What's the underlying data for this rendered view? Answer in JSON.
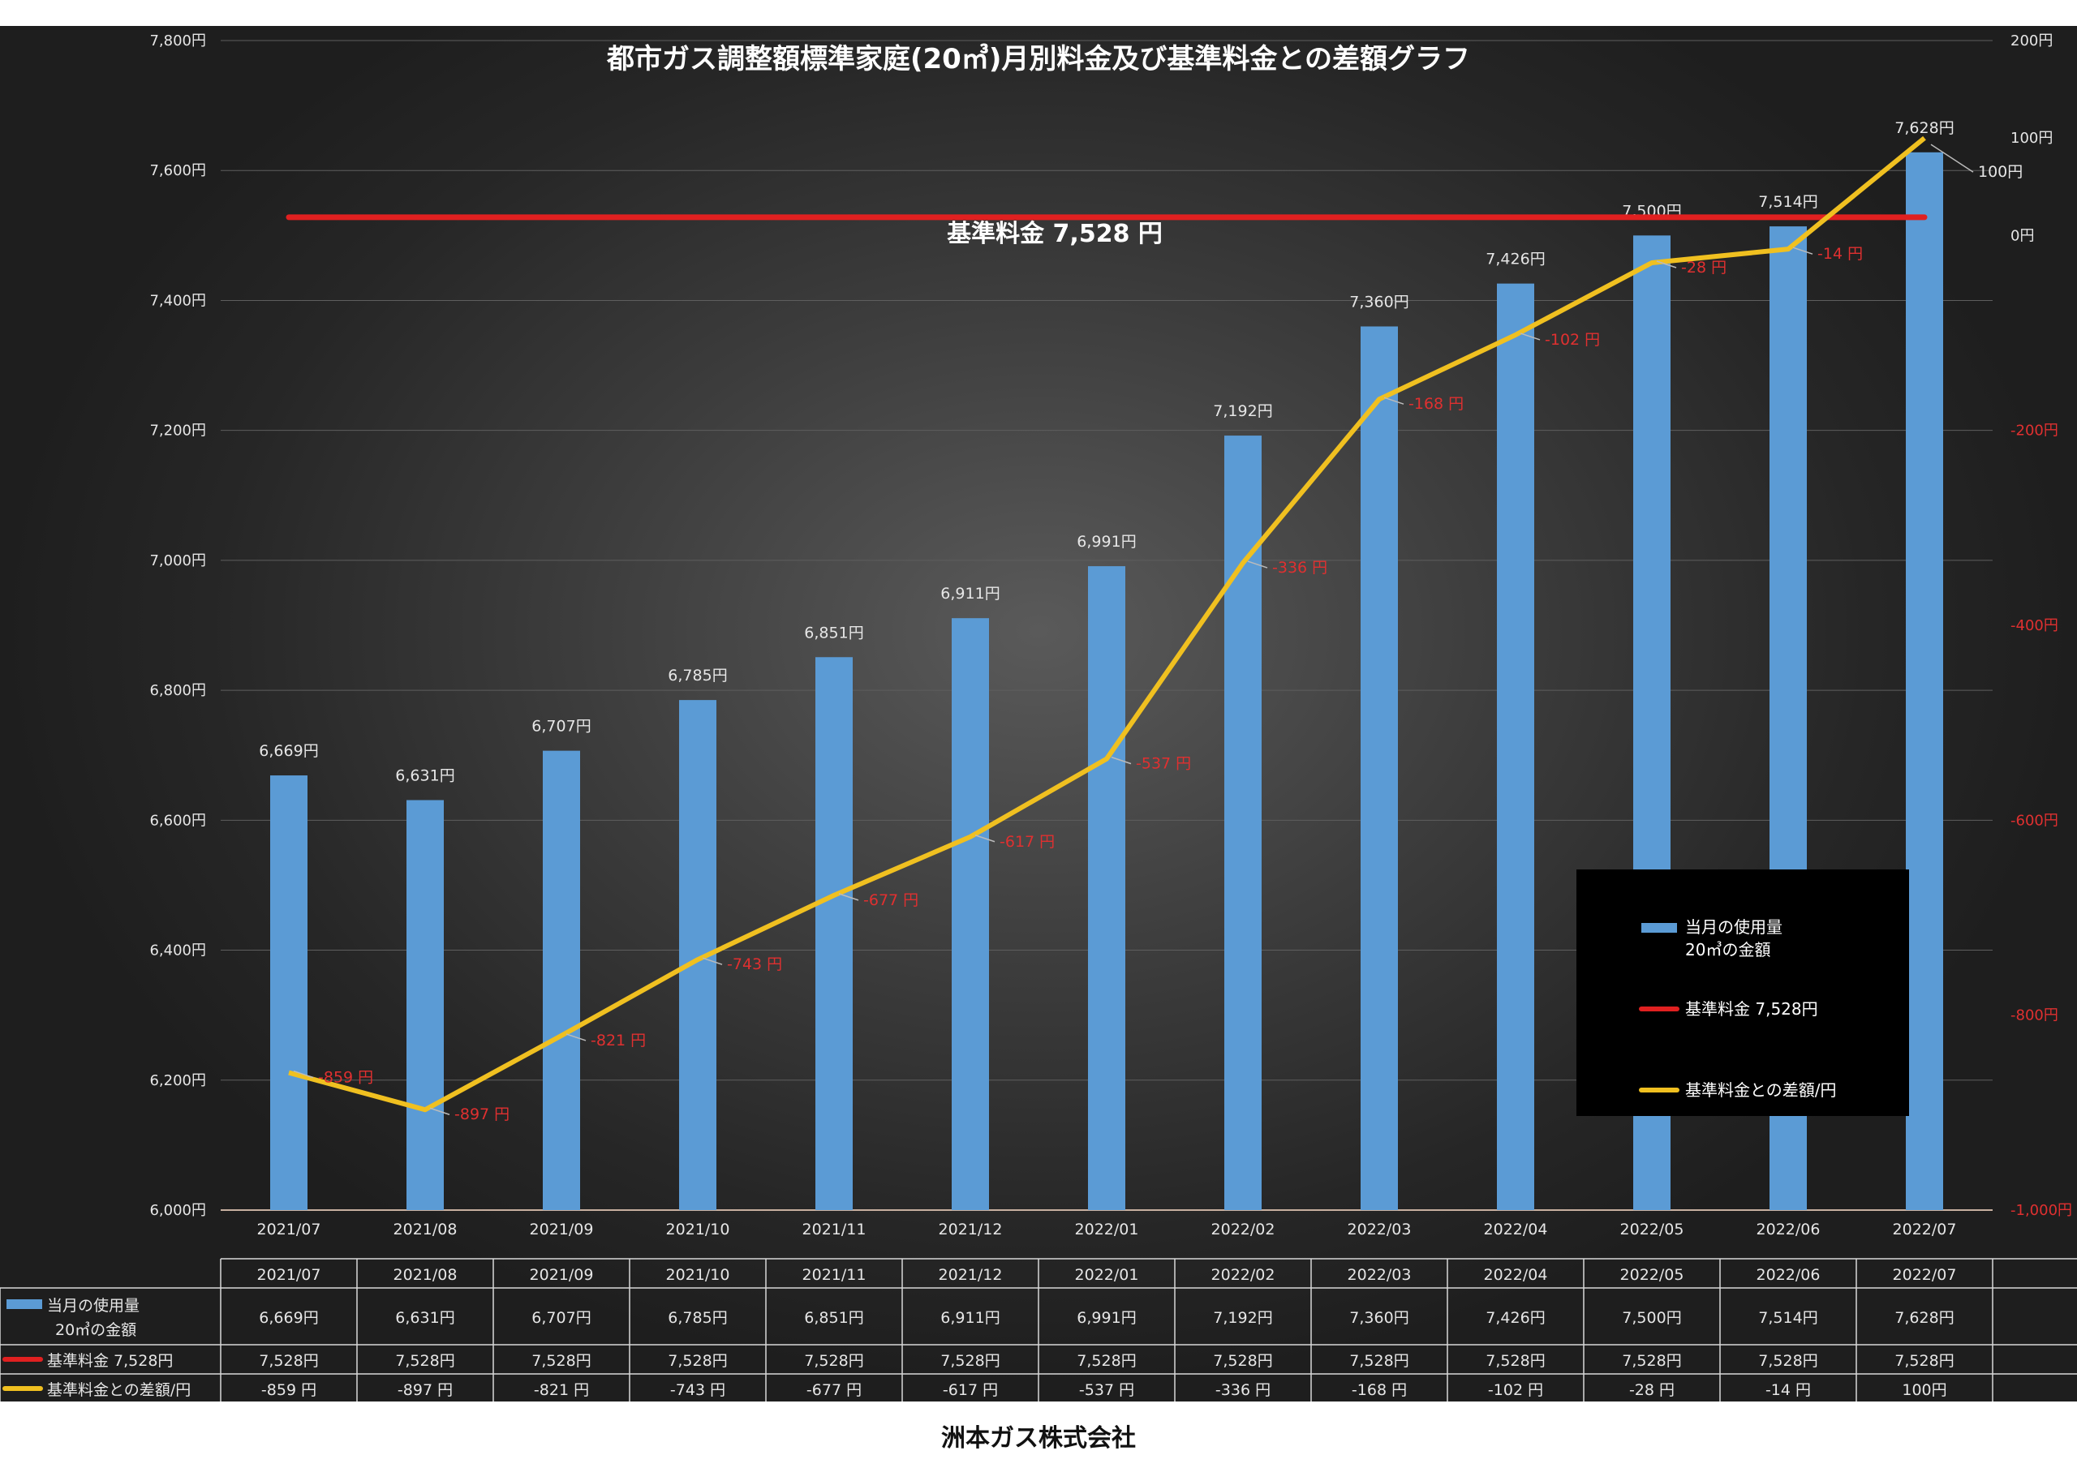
{
  "chart_data": {
    "type": "bar+line",
    "title": "都市ガス調整額標準家庭(20㎥)月別料金及び基準料金との差額グラフ",
    "categories": [
      "2021/07",
      "2021/08",
      "2021/09",
      "2021/10",
      "2021/11",
      "2021/12",
      "2022/01",
      "2022/02",
      "2022/03",
      "2022/04",
      "2022/05",
      "2022/06",
      "2022/07"
    ],
    "y_left": {
      "range": [
        6000,
        7800
      ],
      "ticks": [
        "6,000円",
        "6,200円",
        "6,400円",
        "6,600円",
        "6,800円",
        "7,000円",
        "7,200円",
        "7,400円",
        "7,600円",
        "7,800円"
      ]
    },
    "y_right": {
      "range": [
        -1000,
        200
      ],
      "ticks": [
        "-1,000円",
        "-800円",
        "-600円",
        "-400円",
        "-200円",
        "0円",
        "100円",
        "200円"
      ]
    },
    "grid": true,
    "legend_position": "bottom-right",
    "series": [
      {
        "name": "当月の使用量 20㎥の金額",
        "legend_line1": "当月の使用量",
        "legend_line2": "20㎥の金額",
        "type": "bar",
        "axis": "left",
        "values": [
          6669,
          6631,
          6707,
          6785,
          6851,
          6911,
          6991,
          7192,
          7360,
          7426,
          7500,
          7514,
          7628
        ],
        "labels": [
          "6,669円",
          "6,631円",
          "6,707円",
          "6,785円",
          "6,851円",
          "6,911円",
          "6,991円",
          "7,192円",
          "7,360円",
          "7,426円",
          "7,500円",
          "7,514円",
          "7,628円"
        ],
        "color": "#5b9bd5"
      },
      {
        "name": "基準料金 7,528円",
        "type": "line",
        "axis": "left",
        "values": [
          7528,
          7528,
          7528,
          7528,
          7528,
          7528,
          7528,
          7528,
          7528,
          7528,
          7528,
          7528,
          7528
        ],
        "labels": [
          "7,528円",
          "7,528円",
          "7,528円",
          "7,528円",
          "7,528円",
          "7,528円",
          "7,528円",
          "7,528円",
          "7,528円",
          "7,528円",
          "7,528円",
          "7,528円",
          "7,528円"
        ],
        "color": "#e02020"
      },
      {
        "name": "基準料金との差額/円",
        "type": "line",
        "axis": "right",
        "values": [
          -859,
          -897,
          -821,
          -743,
          -677,
          -617,
          -537,
          -336,
          -168,
          -102,
          -28,
          -14,
          100
        ],
        "labels": [
          "-859 円",
          "-897 円",
          "-821 円",
          "-743 円",
          "-677 円",
          "-617 円",
          "-537 円",
          "-336 円",
          "-168 円",
          "-102 円",
          "-28 円",
          "-14 円",
          "100円"
        ],
        "color": "#f0c020"
      }
    ],
    "annotations": {
      "base_line_label": "基準料金  7,528  円"
    }
  },
  "table": {
    "header": [
      "2021/07",
      "2021/08",
      "2021/09",
      "2021/10",
      "2021/11",
      "2021/12",
      "2022/01",
      "2022/02",
      "2022/03",
      "2022/04",
      "2022/05",
      "2022/06",
      "2022/07"
    ],
    "row_labels": {
      "bar_line1": "当月の使用量",
      "bar_line2": "20㎥の金額",
      "base": "基準料金  7,528円",
      "diff": "基準料金との差額/円"
    }
  },
  "footer": {
    "company": "洲本ガス株式会社"
  }
}
